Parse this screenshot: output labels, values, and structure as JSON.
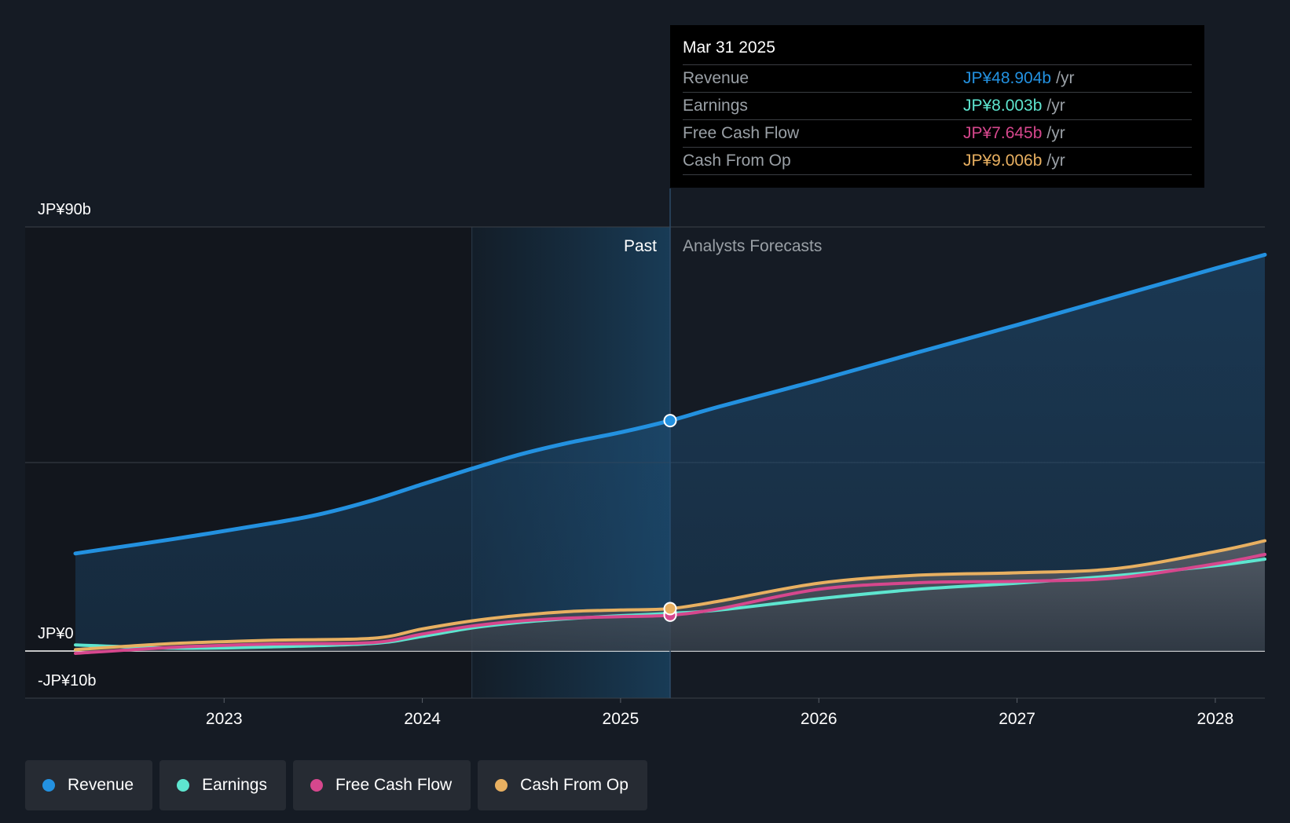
{
  "chart_data": {
    "type": "area",
    "currency_prefix": "JP¥",
    "y_ticks": [
      {
        "value": 90,
        "label": "JP¥90b"
      },
      {
        "value": 0,
        "label": "JP¥0"
      },
      {
        "value": -10,
        "label": "-JP¥10b"
      }
    ],
    "ylim": [
      -10,
      90
    ],
    "xlim": [
      2022.25,
      2028.25
    ],
    "x_ticks": [
      {
        "value": 2023,
        "label": "2023"
      },
      {
        "value": 2024,
        "label": "2024"
      },
      {
        "value": 2025,
        "label": "2025"
      },
      {
        "value": 2026,
        "label": "2026"
      },
      {
        "value": 2027,
        "label": "2027"
      },
      {
        "value": 2028,
        "label": "2028"
      }
    ],
    "past_label": "Past",
    "forecast_label": "Analysts Forecasts",
    "divider_x": 2025.25,
    "highlight_start_x": 2024.25,
    "series": [
      {
        "name": "Revenue",
        "color": "#2391e0",
        "x": [
          2022.25,
          2022.75,
          2023.25,
          2023.5,
          2023.75,
          2024.0,
          2024.25,
          2024.5,
          2024.75,
          2025.0,
          2025.25,
          2025.5,
          2026.0,
          2026.5,
          2027.0,
          2027.5,
          2028.0,
          2028.25
        ],
        "y": [
          20.7,
          23.8,
          27.2,
          29.2,
          32.0,
          35.4,
          38.7,
          41.8,
          44.3,
          46.4,
          48.9,
          51.9,
          57.5,
          63.4,
          69.2,
          75.2,
          81.2,
          84.1
        ]
      },
      {
        "name": "Earnings",
        "color": "#5ee5cf",
        "x": [
          2022.25,
          2022.75,
          2023.25,
          2023.75,
          2024.0,
          2024.25,
          2024.5,
          2024.75,
          2025.0,
          2025.25,
          2025.5,
          2026.0,
          2026.5,
          2027.0,
          2027.5,
          2028.0,
          2028.25
        ],
        "y": [
          1.3,
          0.6,
          0.9,
          1.6,
          3.1,
          4.9,
          6.1,
          6.9,
          7.5,
          8.0,
          8.7,
          11.1,
          13.1,
          14.4,
          16.0,
          18.1,
          19.5
        ]
      },
      {
        "name": "Free Cash Flow",
        "color": "#d6478d",
        "x": [
          2022.25,
          2022.75,
          2023.25,
          2023.75,
          2024.0,
          2024.25,
          2024.5,
          2024.75,
          2025.0,
          2025.25,
          2025.5,
          2026.0,
          2026.5,
          2027.0,
          2027.5,
          2028.0,
          2028.25
        ],
        "y": [
          -0.5,
          0.8,
          1.5,
          1.8,
          3.6,
          5.3,
          6.4,
          7.0,
          7.3,
          7.6,
          9.0,
          13.1,
          14.5,
          14.8,
          15.5,
          18.5,
          20.5
        ]
      },
      {
        "name": "Cash From Op",
        "color": "#e8b061",
        "x": [
          2022.25,
          2022.75,
          2023.25,
          2023.75,
          2024.0,
          2024.25,
          2024.5,
          2024.75,
          2025.0,
          2025.25,
          2025.5,
          2026.0,
          2026.5,
          2027.0,
          2027.5,
          2028.0,
          2028.25
        ],
        "y": [
          0.3,
          1.6,
          2.3,
          2.7,
          4.7,
          6.4,
          7.6,
          8.4,
          8.7,
          9.0,
          10.6,
          14.4,
          16.1,
          16.6,
          17.5,
          21.1,
          23.4
        ]
      }
    ]
  },
  "tooltip": {
    "date": "Mar 31 2025",
    "unit": "/yr",
    "rows": [
      {
        "label": "Revenue",
        "value": "JP¥48.904b",
        "color": "#2391e0"
      },
      {
        "label": "Earnings",
        "value": "JP¥8.003b",
        "color": "#5ee5cf"
      },
      {
        "label": "Free Cash Flow",
        "value": "JP¥7.645b",
        "color": "#d6478d"
      },
      {
        "label": "Cash From Op",
        "value": "JP¥9.006b",
        "color": "#e8b061"
      }
    ]
  },
  "legend": [
    {
      "label": "Revenue",
      "color": "#2391e0"
    },
    {
      "label": "Earnings",
      "color": "#5ee5cf"
    },
    {
      "label": "Free Cash Flow",
      "color": "#d6478d"
    },
    {
      "label": "Cash From Op",
      "color": "#e8b061"
    }
  ]
}
